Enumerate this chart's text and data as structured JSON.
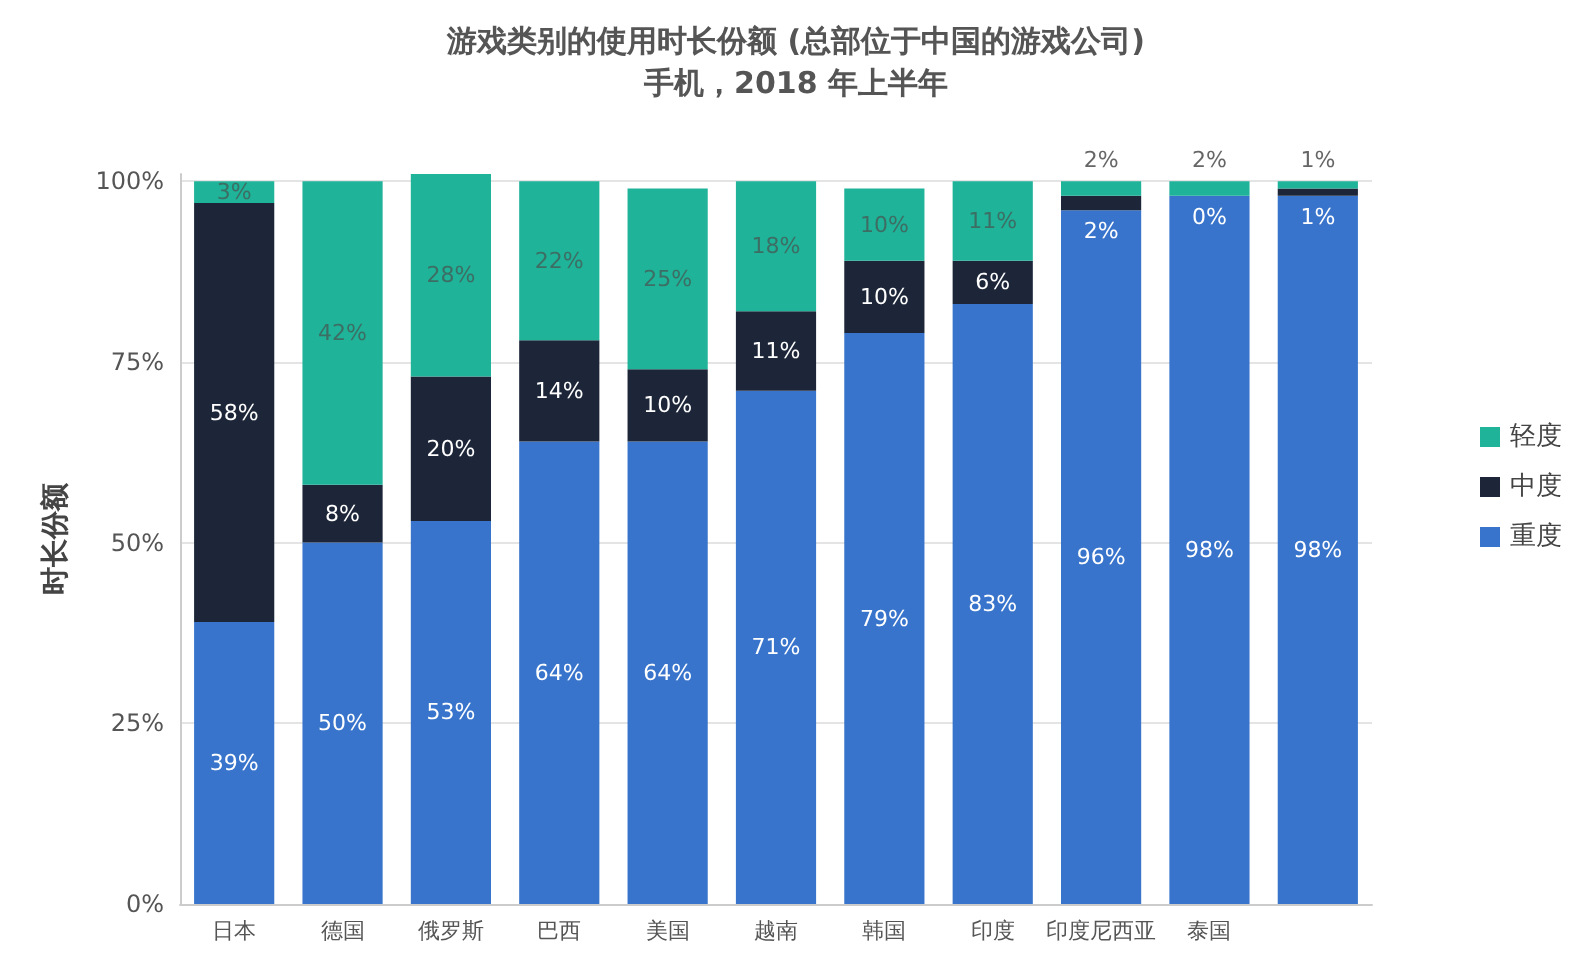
{
  "chart_data": {
    "type": "bar",
    "stacked": true,
    "title": "游戏类别的使用时长份额 (总部位于中国的游戏公司)",
    "subtitle": "手机，2018 年上半年",
    "ylabel": "时长份额",
    "categories": [
      "日本",
      "德国",
      "俄罗斯",
      "巴西",
      "美国",
      "越南",
      "韩国",
      "印度",
      "印度尼西亚",
      "泰国",
      null
    ],
    "series": [
      {
        "name": "重度",
        "color": "#3874cb",
        "values": [
          39,
          50,
          53,
          64,
          64,
          71,
          79,
          83,
          96,
          98,
          98
        ],
        "value_labels": [
          "39%",
          "50%",
          "53%",
          "64%",
          "64%",
          "71%",
          "79%",
          "83%",
          "96%",
          "98%",
          "98%"
        ]
      },
      {
        "name": "中度",
        "color": "#1c2638",
        "values": [
          58,
          8,
          20,
          14,
          10,
          11,
          10,
          6,
          2,
          0,
          1
        ],
        "value_labels": [
          "58%",
          "8%",
          "20%",
          "14%",
          "10%",
          "11%",
          "10%",
          "6%",
          "2%",
          "0%",
          "1%"
        ]
      },
      {
        "name": "轻度",
        "color": "#1fb399",
        "values": [
          3,
          42,
          28,
          22,
          25,
          18,
          10,
          11,
          2,
          2,
          1
        ],
        "value_labels": [
          "3%",
          "42%",
          "28%",
          "22%",
          "25%",
          "18%",
          "10%",
          "11%",
          "2%",
          "2%",
          "1%"
        ]
      }
    ],
    "ylim": [
      0,
      101
    ],
    "yticks": [
      {
        "value": 0,
        "label": "0%"
      },
      {
        "value": 25,
        "label": "25%"
      },
      {
        "value": 50,
        "label": "50%"
      },
      {
        "value": 75,
        "label": "75%"
      },
      {
        "value": 100,
        "label": "100%"
      }
    ],
    "grid": "y",
    "legend": "right"
  }
}
